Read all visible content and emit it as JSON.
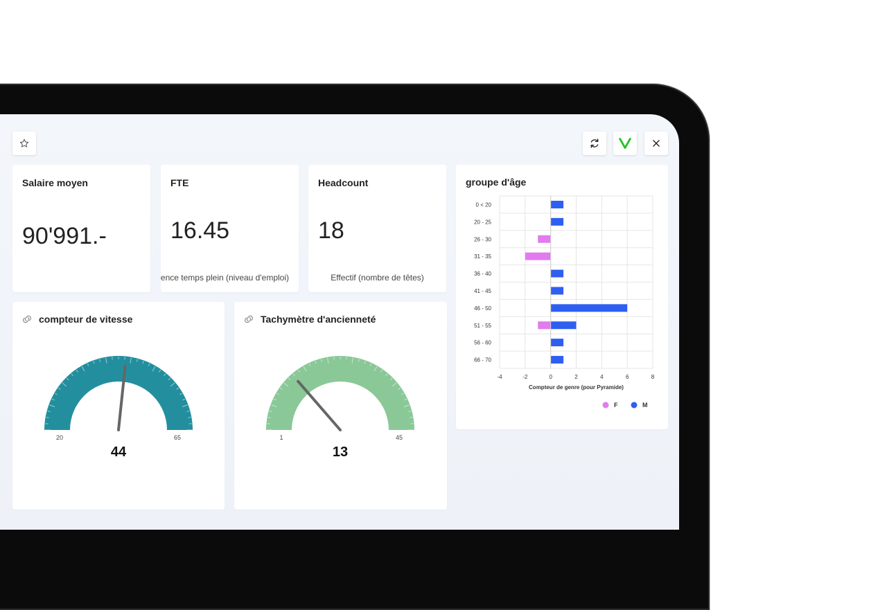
{
  "toolbar": {
    "favorite_icon": "star-icon",
    "refresh_icon": "refresh-icon",
    "brand_icon": "v-logo-icon",
    "close_icon": "close-icon",
    "brand_color": "#1ec21e"
  },
  "kpis": [
    {
      "title": "Salaire moyen",
      "value": "90'991.-",
      "subtitle": ""
    },
    {
      "title": "FTE",
      "value": "16.45",
      "subtitle": "Équivalence temps plein (niveau d'emploi)"
    },
    {
      "title": "Headcount",
      "value": "18",
      "subtitle": "Effectif (nombre de têtes)"
    }
  ],
  "gauges": [
    {
      "title": "compteur de vitesse",
      "min_label": "20",
      "max_label": "65",
      "min": 20,
      "max": 65,
      "value": 44,
      "value_label": "44",
      "color": "#238f9e",
      "icon": "link-icon"
    },
    {
      "title": "Tachymètre d'ancienneté",
      "min_label": "1",
      "max_label": "45",
      "min": 1,
      "max": 45,
      "value": 13,
      "value_label": "13",
      "color": "#8ac898",
      "icon": "link-icon"
    }
  ],
  "age_chart": {
    "title": "groupe d'âge",
    "legend": [
      {
        "label": "F",
        "color": "#e27bee"
      },
      {
        "label": "M",
        "color": "#2f5ff0"
      }
    ]
  },
  "chart_data": {
    "type": "bar",
    "orientation": "horizontal",
    "title": "groupe d'âge",
    "categories": [
      "0 < 20",
      "20 - 25",
      "26 - 30",
      "31 - 35",
      "36 - 40",
      "41 - 45",
      "46 - 50",
      "51 - 55",
      "56 - 60",
      "66 - 70"
    ],
    "series": [
      {
        "name": "F",
        "values": [
          0,
          0,
          -1,
          -2,
          0,
          0,
          0,
          -1,
          0,
          0
        ]
      },
      {
        "name": "M",
        "values": [
          1,
          1,
          0,
          0,
          1,
          1,
          6,
          2,
          1,
          1
        ]
      }
    ],
    "xlabel": "Compteur de genre (pour Pyramide)",
    "xticks": [
      "-4",
      "-2",
      "0",
      "2",
      "4",
      "6",
      "8"
    ],
    "xlim": [
      -4,
      8
    ],
    "grid": true,
    "legend_position": "bottom-right"
  }
}
